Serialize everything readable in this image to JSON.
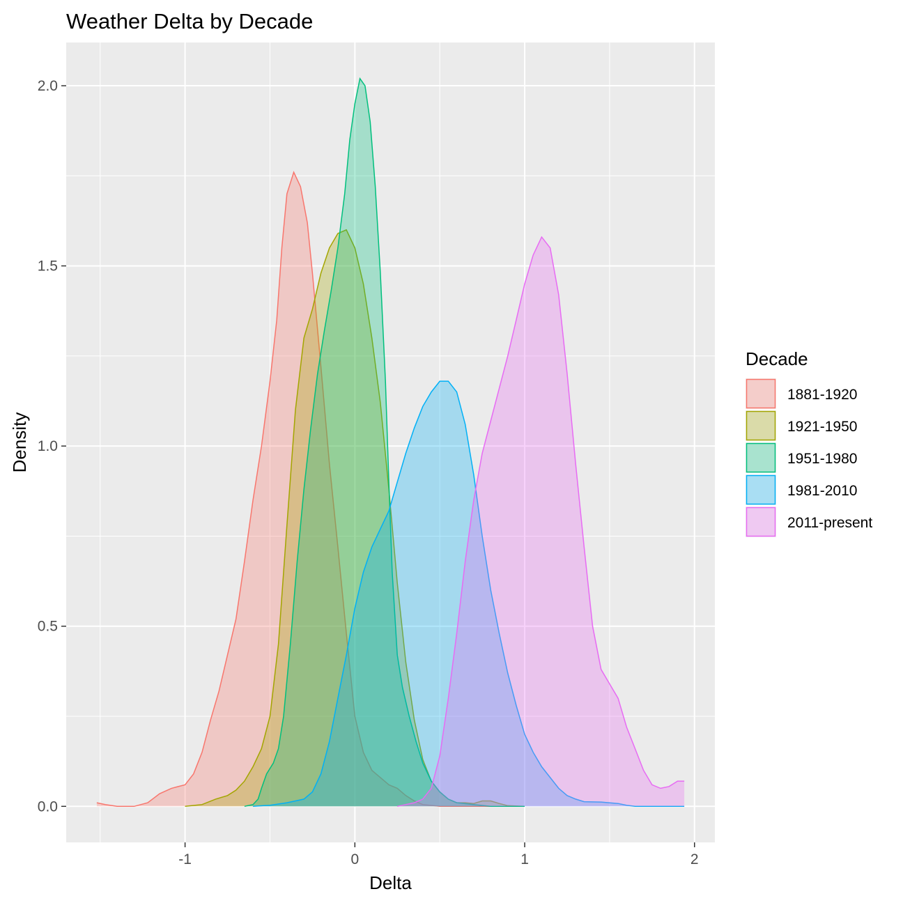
{
  "chart_data": {
    "type": "area",
    "title": "Weather Delta by Decade",
    "xlabel": "Delta",
    "ylabel": "Density",
    "xlim": [
      -1.7,
      2.12
    ],
    "ylim": [
      -0.1,
      2.12
    ],
    "x_ticks": [
      -1,
      0,
      1,
      2
    ],
    "x_tick_labels": [
      "-1",
      "0",
      "1",
      "2"
    ],
    "y_ticks": [
      0.0,
      0.5,
      1.0,
      1.5,
      2.0
    ],
    "y_tick_labels": [
      "0.0",
      "0.5",
      "1.0",
      "1.5",
      "2.0"
    ],
    "grid": true,
    "legend": {
      "title": "Decade",
      "position": "right"
    },
    "series": [
      {
        "name": "1881-1920",
        "color": "#F8766D",
        "points": [
          [
            -1.52,
            0.01
          ],
          [
            -1.47,
            0.005
          ],
          [
            -1.4,
            0
          ],
          [
            -1.3,
            0
          ],
          [
            -1.22,
            0.01
          ],
          [
            -1.15,
            0.035
          ],
          [
            -1.08,
            0.05
          ],
          [
            -1.0,
            0.06
          ],
          [
            -0.95,
            0.09
          ],
          [
            -0.9,
            0.15
          ],
          [
            -0.85,
            0.24
          ],
          [
            -0.8,
            0.32
          ],
          [
            -0.75,
            0.42
          ],
          [
            -0.7,
            0.52
          ],
          [
            -0.65,
            0.68
          ],
          [
            -0.6,
            0.85
          ],
          [
            -0.55,
            1.0
          ],
          [
            -0.5,
            1.18
          ],
          [
            -0.46,
            1.35
          ],
          [
            -0.43,
            1.55
          ],
          [
            -0.4,
            1.7
          ],
          [
            -0.36,
            1.76
          ],
          [
            -0.32,
            1.72
          ],
          [
            -0.28,
            1.62
          ],
          [
            -0.25,
            1.48
          ],
          [
            -0.2,
            1.22
          ],
          [
            -0.15,
            0.95
          ],
          [
            -0.1,
            0.72
          ],
          [
            -0.05,
            0.48
          ],
          [
            0.0,
            0.25
          ],
          [
            0.05,
            0.15
          ],
          [
            0.1,
            0.1
          ],
          [
            0.15,
            0.08
          ],
          [
            0.2,
            0.06
          ],
          [
            0.25,
            0.05
          ],
          [
            0.3,
            0.03
          ],
          [
            0.35,
            0.015
          ],
          [
            0.4,
            0.005
          ],
          [
            0.5,
            0.0
          ],
          [
            0.7,
            0.0
          ],
          [
            0.8,
            0.0
          ]
        ]
      },
      {
        "name": "1921-1950",
        "color": "#A3A500",
        "points": [
          [
            -1.0,
            0
          ],
          [
            -0.9,
            0.005
          ],
          [
            -0.82,
            0.02
          ],
          [
            -0.75,
            0.03
          ],
          [
            -0.7,
            0.045
          ],
          [
            -0.65,
            0.07
          ],
          [
            -0.6,
            0.11
          ],
          [
            -0.55,
            0.16
          ],
          [
            -0.5,
            0.25
          ],
          [
            -0.45,
            0.45
          ],
          [
            -0.4,
            0.78
          ],
          [
            -0.35,
            1.1
          ],
          [
            -0.3,
            1.3
          ],
          [
            -0.25,
            1.38
          ],
          [
            -0.2,
            1.48
          ],
          [
            -0.15,
            1.55
          ],
          [
            -0.1,
            1.59
          ],
          [
            -0.05,
            1.6
          ],
          [
            0.0,
            1.55
          ],
          [
            0.05,
            1.45
          ],
          [
            0.1,
            1.3
          ],
          [
            0.15,
            1.12
          ],
          [
            0.2,
            0.88
          ],
          [
            0.25,
            0.62
          ],
          [
            0.3,
            0.4
          ],
          [
            0.35,
            0.24
          ],
          [
            0.4,
            0.13
          ],
          [
            0.45,
            0.07
          ],
          [
            0.5,
            0.04
          ],
          [
            0.55,
            0.02
          ],
          [
            0.6,
            0.01
          ],
          [
            0.65,
            0.01
          ],
          [
            0.7,
            0.008
          ],
          [
            0.75,
            0.015
          ],
          [
            0.8,
            0.015
          ],
          [
            0.85,
            0.008
          ],
          [
            0.9,
            0.002
          ],
          [
            1.0,
            0.0
          ]
        ]
      },
      {
        "name": "1951-1980",
        "color": "#00BF7D",
        "points": [
          [
            -0.65,
            0
          ],
          [
            -0.6,
            0.005
          ],
          [
            -0.57,
            0.02
          ],
          [
            -0.55,
            0.05
          ],
          [
            -0.52,
            0.09
          ],
          [
            -0.48,
            0.12
          ],
          [
            -0.45,
            0.16
          ],
          [
            -0.42,
            0.25
          ],
          [
            -0.38,
            0.45
          ],
          [
            -0.34,
            0.68
          ],
          [
            -0.3,
            0.88
          ],
          [
            -0.26,
            1.05
          ],
          [
            -0.22,
            1.2
          ],
          [
            -0.18,
            1.32
          ],
          [
            -0.14,
            1.43
          ],
          [
            -0.1,
            1.55
          ],
          [
            -0.06,
            1.7
          ],
          [
            -0.03,
            1.85
          ],
          [
            0.0,
            1.95
          ],
          [
            0.03,
            2.02
          ],
          [
            0.06,
            2.0
          ],
          [
            0.09,
            1.9
          ],
          [
            0.12,
            1.72
          ],
          [
            0.15,
            1.48
          ],
          [
            0.18,
            1.18
          ],
          [
            0.2,
            0.9
          ],
          [
            0.22,
            0.65
          ],
          [
            0.25,
            0.42
          ],
          [
            0.28,
            0.33
          ],
          [
            0.32,
            0.25
          ],
          [
            0.36,
            0.18
          ],
          [
            0.4,
            0.12
          ],
          [
            0.45,
            0.07
          ],
          [
            0.5,
            0.04
          ],
          [
            0.55,
            0.02
          ],
          [
            0.6,
            0.01
          ],
          [
            0.7,
            0.005
          ],
          [
            0.8,
            0.0
          ],
          [
            1.0,
            0.0
          ]
        ]
      },
      {
        "name": "1981-2010",
        "color": "#00B0F6",
        "points": [
          [
            -0.6,
            0
          ],
          [
            -0.5,
            0.003
          ],
          [
            -0.4,
            0.01
          ],
          [
            -0.3,
            0.02
          ],
          [
            -0.25,
            0.04
          ],
          [
            -0.2,
            0.09
          ],
          [
            -0.15,
            0.18
          ],
          [
            -0.1,
            0.3
          ],
          [
            -0.05,
            0.42
          ],
          [
            0.0,
            0.55
          ],
          [
            0.05,
            0.65
          ],
          [
            0.1,
            0.72
          ],
          [
            0.15,
            0.77
          ],
          [
            0.2,
            0.82
          ],
          [
            0.25,
            0.9
          ],
          [
            0.3,
            0.98
          ],
          [
            0.35,
            1.05
          ],
          [
            0.4,
            1.11
          ],
          [
            0.45,
            1.15
          ],
          [
            0.5,
            1.18
          ],
          [
            0.55,
            1.18
          ],
          [
            0.6,
            1.15
          ],
          [
            0.65,
            1.06
          ],
          [
            0.7,
            0.92
          ],
          [
            0.75,
            0.75
          ],
          [
            0.8,
            0.6
          ],
          [
            0.85,
            0.48
          ],
          [
            0.9,
            0.37
          ],
          [
            0.95,
            0.28
          ],
          [
            1.0,
            0.2
          ],
          [
            1.05,
            0.15
          ],
          [
            1.1,
            0.11
          ],
          [
            1.15,
            0.08
          ],
          [
            1.2,
            0.05
          ],
          [
            1.25,
            0.03
          ],
          [
            1.3,
            0.02
          ],
          [
            1.35,
            0.013
          ],
          [
            1.45,
            0.012
          ],
          [
            1.55,
            0.008
          ],
          [
            1.6,
            0.003
          ],
          [
            1.65,
            0.0
          ],
          [
            1.94,
            0.0
          ]
        ]
      },
      {
        "name": "2011-present",
        "color": "#E76BF3",
        "points": [
          [
            0.25,
            0
          ],
          [
            0.3,
            0.005
          ],
          [
            0.35,
            0.01
          ],
          [
            0.4,
            0.02
          ],
          [
            0.45,
            0.05
          ],
          [
            0.5,
            0.14
          ],
          [
            0.55,
            0.3
          ],
          [
            0.6,
            0.48
          ],
          [
            0.65,
            0.68
          ],
          [
            0.7,
            0.85
          ],
          [
            0.75,
            0.98
          ],
          [
            0.8,
            1.07
          ],
          [
            0.85,
            1.16
          ],
          [
            0.9,
            1.25
          ],
          [
            0.95,
            1.35
          ],
          [
            1.0,
            1.45
          ],
          [
            1.05,
            1.53
          ],
          [
            1.1,
            1.58
          ],
          [
            1.15,
            1.55
          ],
          [
            1.2,
            1.42
          ],
          [
            1.25,
            1.2
          ],
          [
            1.3,
            0.95
          ],
          [
            1.35,
            0.72
          ],
          [
            1.4,
            0.5
          ],
          [
            1.45,
            0.38
          ],
          [
            1.5,
            0.34
          ],
          [
            1.55,
            0.3
          ],
          [
            1.6,
            0.22
          ],
          [
            1.65,
            0.16
          ],
          [
            1.7,
            0.1
          ],
          [
            1.75,
            0.06
          ],
          [
            1.8,
            0.05
          ],
          [
            1.85,
            0.055
          ],
          [
            1.9,
            0.07
          ],
          [
            1.94,
            0.07
          ]
        ]
      }
    ]
  }
}
